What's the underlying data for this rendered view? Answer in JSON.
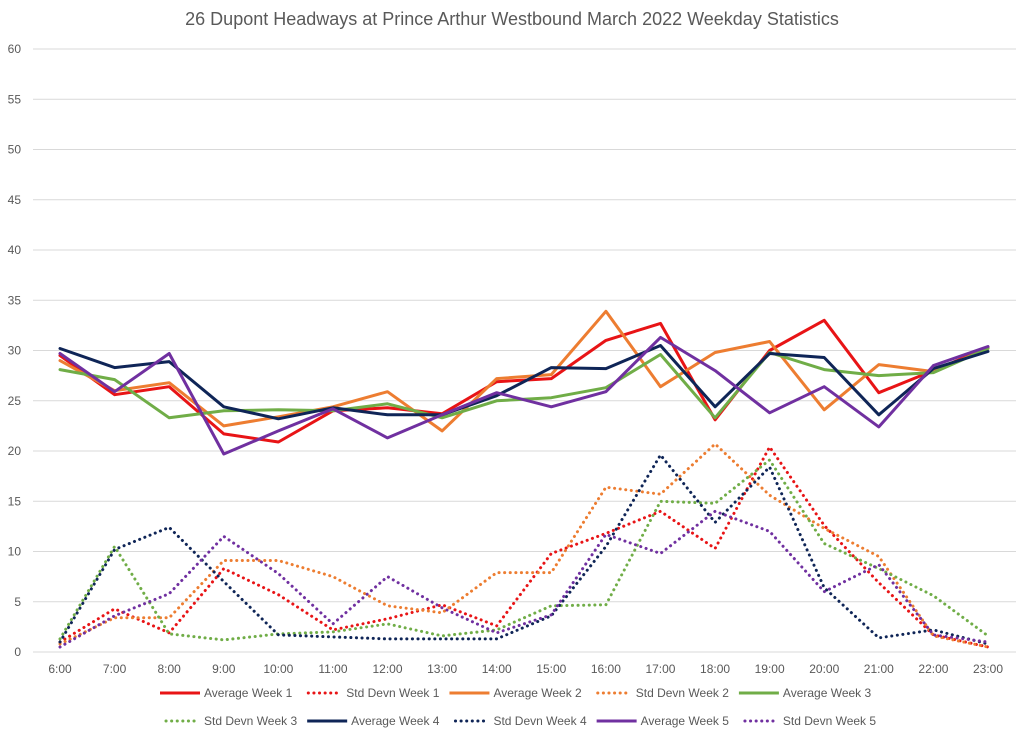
{
  "chart_data": {
    "type": "line",
    "title": "26 Dupont Headways at Prince Arthur Westbound March 2022 Weekday Statistics",
    "xlabel": "",
    "ylabel": "",
    "ylim": [
      0,
      60
    ],
    "yticks": [
      0,
      5,
      10,
      15,
      20,
      25,
      30,
      35,
      40,
      45,
      50,
      55,
      60
    ],
    "grid": true,
    "legend_position": "bottom",
    "categories": [
      "6:00",
      "7:00",
      "8:00",
      "9:00",
      "10:00",
      "11:00",
      "12:00",
      "13:00",
      "14:00",
      "15:00",
      "16:00",
      "17:00",
      "18:00",
      "19:00",
      "20:00",
      "21:00",
      "22:00",
      "23:00"
    ],
    "series": [
      {
        "name": "Average Week 1",
        "color": "#e81416",
        "style": "solid",
        "values": [
          29.5,
          25.6,
          26.4,
          21.7,
          20.9,
          24.0,
          24.3,
          23.7,
          26.9,
          27.2,
          31.0,
          32.7,
          23.1,
          30.0,
          33.0,
          25.8,
          28.0,
          30.3
        ]
      },
      {
        "name": "Std Devn Week 1",
        "color": "#e81416",
        "style": "dotted",
        "values": [
          1.0,
          4.3,
          1.9,
          8.3,
          5.7,
          2.2,
          3.3,
          4.7,
          2.6,
          9.8,
          11.8,
          14.0,
          10.3,
          20.4,
          12.6,
          6.9,
          1.7,
          0.5
        ]
      },
      {
        "name": "Average Week 2",
        "color": "#ed7d31",
        "style": "solid",
        "values": [
          29.0,
          26.0,
          26.8,
          22.5,
          23.4,
          24.4,
          25.9,
          22.0,
          27.2,
          27.6,
          33.9,
          26.4,
          29.8,
          30.9,
          24.1,
          28.6,
          27.9,
          30.2
        ]
      },
      {
        "name": "Std Devn Week 2",
        "color": "#ed7d31",
        "style": "dotted",
        "values": [
          0.8,
          3.4,
          3.4,
          9.1,
          9.1,
          7.5,
          4.6,
          3.9,
          7.9,
          7.9,
          16.4,
          15.7,
          20.7,
          15.6,
          12.3,
          9.5,
          1.6,
          0.5
        ]
      },
      {
        "name": "Average Week 3",
        "color": "#70ad47",
        "style": "solid",
        "values": [
          28.1,
          27.1,
          23.3,
          24.0,
          24.1,
          24.0,
          24.7,
          23.3,
          25.0,
          25.3,
          26.3,
          29.6,
          23.3,
          29.8,
          28.1,
          27.5,
          27.8,
          30.2
        ]
      },
      {
        "name": "Std Devn Week 3",
        "color": "#70ad47",
        "style": "dotted",
        "values": [
          1.3,
          10.5,
          1.8,
          1.2,
          1.8,
          2.0,
          2.8,
          1.6,
          2.2,
          4.6,
          4.7,
          15.0,
          14.8,
          19.1,
          10.8,
          8.3,
          5.6,
          1.6
        ]
      },
      {
        "name": "Average Week 4",
        "color": "#0f2557",
        "style": "solid",
        "values": [
          30.2,
          28.3,
          28.9,
          24.4,
          23.2,
          24.3,
          23.6,
          23.6,
          25.5,
          28.3,
          28.2,
          30.5,
          24.4,
          29.7,
          29.3,
          23.6,
          28.2,
          29.9
        ]
      },
      {
        "name": "Std Devn Week 4",
        "color": "#0f2557",
        "style": "dotted",
        "values": [
          1.0,
          10.2,
          12.4,
          7.0,
          1.7,
          1.5,
          1.3,
          1.3,
          1.3,
          3.6,
          10.5,
          19.6,
          12.9,
          18.4,
          6.4,
          1.4,
          2.2,
          0.8
        ]
      },
      {
        "name": "Average Week 5",
        "color": "#7030a0",
        "style": "solid",
        "values": [
          29.7,
          25.9,
          29.7,
          19.7,
          22.0,
          24.2,
          21.3,
          23.6,
          25.8,
          24.4,
          25.9,
          31.3,
          28.0,
          23.8,
          26.4,
          22.4,
          28.5,
          30.4
        ]
      },
      {
        "name": "Std Devn Week 5",
        "color": "#7030a0",
        "style": "dotted",
        "values": [
          0.5,
          3.6,
          5.8,
          11.5,
          7.8,
          2.8,
          7.5,
          4.4,
          1.9,
          3.7,
          11.7,
          9.8,
          14.0,
          12.0,
          6.0,
          8.7,
          1.7,
          1.0
        ]
      }
    ]
  }
}
